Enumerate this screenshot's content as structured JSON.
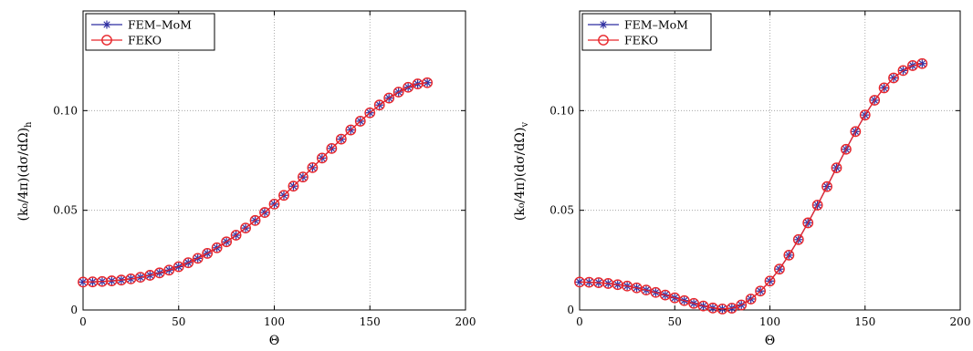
{
  "chart_data": [
    {
      "type": "line",
      "xlabel": "Θ",
      "ylabel": {
        "main": "(k₀/4π)(dσ/dΩ)",
        "sub": "h"
      },
      "xlim": [
        0,
        200
      ],
      "ylim": [
        0,
        0.15
      ],
      "xticks": [
        0,
        50,
        100,
        150,
        200
      ],
      "xtick_labels": [
        "0",
        "50",
        "100",
        "150",
        "200"
      ],
      "yticks": [
        0,
        0.05,
        0.1
      ],
      "ytick_labels": [
        "0",
        "0.05",
        "0.10"
      ],
      "grid": true,
      "legend_position": "top-left",
      "x": [
        0,
        5,
        10,
        15,
        20,
        25,
        30,
        35,
        40,
        45,
        50,
        55,
        60,
        65,
        70,
        75,
        80,
        85,
        90,
        95,
        100,
        105,
        110,
        115,
        120,
        125,
        130,
        135,
        140,
        145,
        150,
        155,
        160,
        165,
        170,
        175,
        180
      ],
      "series": [
        {
          "name": "FEM–MoM",
          "color": "#2c2ca0",
          "marker": "asterisk",
          "values": [
            0.014,
            0.0141,
            0.0143,
            0.0146,
            0.015,
            0.0156,
            0.0164,
            0.0174,
            0.0186,
            0.02,
            0.0217,
            0.0237,
            0.0259,
            0.0284,
            0.0312,
            0.0342,
            0.0375,
            0.0411,
            0.0449,
            0.0489,
            0.0531,
            0.0575,
            0.0621,
            0.0667,
            0.0714,
            0.0762,
            0.081,
            0.0857,
            0.0903,
            0.0947,
            0.0989,
            0.1028,
            0.1063,
            0.1093,
            0.1117,
            0.1134,
            0.114
          ]
        },
        {
          "name": "FEKO",
          "color": "#e8262b",
          "marker": "circle",
          "values": [
            0.014,
            0.0141,
            0.0143,
            0.0146,
            0.015,
            0.0156,
            0.0164,
            0.0174,
            0.0186,
            0.02,
            0.0217,
            0.0237,
            0.0259,
            0.0284,
            0.0312,
            0.0342,
            0.0375,
            0.0411,
            0.0449,
            0.0489,
            0.0531,
            0.0575,
            0.0621,
            0.0667,
            0.0714,
            0.0762,
            0.081,
            0.0857,
            0.0903,
            0.0947,
            0.0989,
            0.1028,
            0.1063,
            0.1093,
            0.1117,
            0.1134,
            0.114
          ]
        }
      ]
    },
    {
      "type": "line",
      "xlabel": "Θ",
      "ylabel": {
        "main": "(k₀/4π)(dσ/dΩ)",
        "sub": "v"
      },
      "xlim": [
        0,
        200
      ],
      "ylim": [
        0,
        0.15
      ],
      "xticks": [
        0,
        50,
        100,
        150,
        200
      ],
      "xtick_labels": [
        "0",
        "50",
        "100",
        "150",
        "200"
      ],
      "yticks": [
        0,
        0.05,
        0.1
      ],
      "ytick_labels": [
        "0",
        "0.05",
        "0.10"
      ],
      "grid": true,
      "legend_position": "top-left",
      "x": [
        0,
        5,
        10,
        15,
        20,
        25,
        30,
        35,
        40,
        45,
        50,
        55,
        60,
        65,
        70,
        75,
        80,
        85,
        90,
        95,
        100,
        105,
        110,
        115,
        120,
        125,
        130,
        135,
        140,
        145,
        150,
        155,
        160,
        165,
        170,
        175,
        180
      ],
      "series": [
        {
          "name": "FEM–MoM",
          "color": "#2c2ca0",
          "marker": "asterisk",
          "values": [
            0.014,
            0.0139,
            0.0137,
            0.0133,
            0.0127,
            0.012,
            0.0111,
            0.01,
            0.0088,
            0.0075,
            0.0061,
            0.0047,
            0.0033,
            0.002,
            0.001,
            0.0005,
            0.0009,
            0.0025,
            0.0055,
            0.0095,
            0.0145,
            0.0205,
            0.0275,
            0.0353,
            0.0437,
            0.0526,
            0.0619,
            0.0713,
            0.0806,
            0.0895,
            0.0978,
            0.1052,
            0.1114,
            0.1164,
            0.1201,
            0.1226,
            0.1236
          ]
        },
        {
          "name": "FEKO",
          "color": "#e8262b",
          "marker": "circle",
          "values": [
            0.014,
            0.0139,
            0.0137,
            0.0133,
            0.0127,
            0.012,
            0.0111,
            0.01,
            0.0088,
            0.0075,
            0.0061,
            0.0047,
            0.0033,
            0.002,
            0.001,
            0.0005,
            0.0009,
            0.0025,
            0.0055,
            0.0095,
            0.0145,
            0.0205,
            0.0275,
            0.0353,
            0.0437,
            0.0526,
            0.0619,
            0.0713,
            0.0806,
            0.0895,
            0.0978,
            0.1052,
            0.1114,
            0.1164,
            0.1201,
            0.1226,
            0.1236
          ]
        }
      ]
    }
  ]
}
